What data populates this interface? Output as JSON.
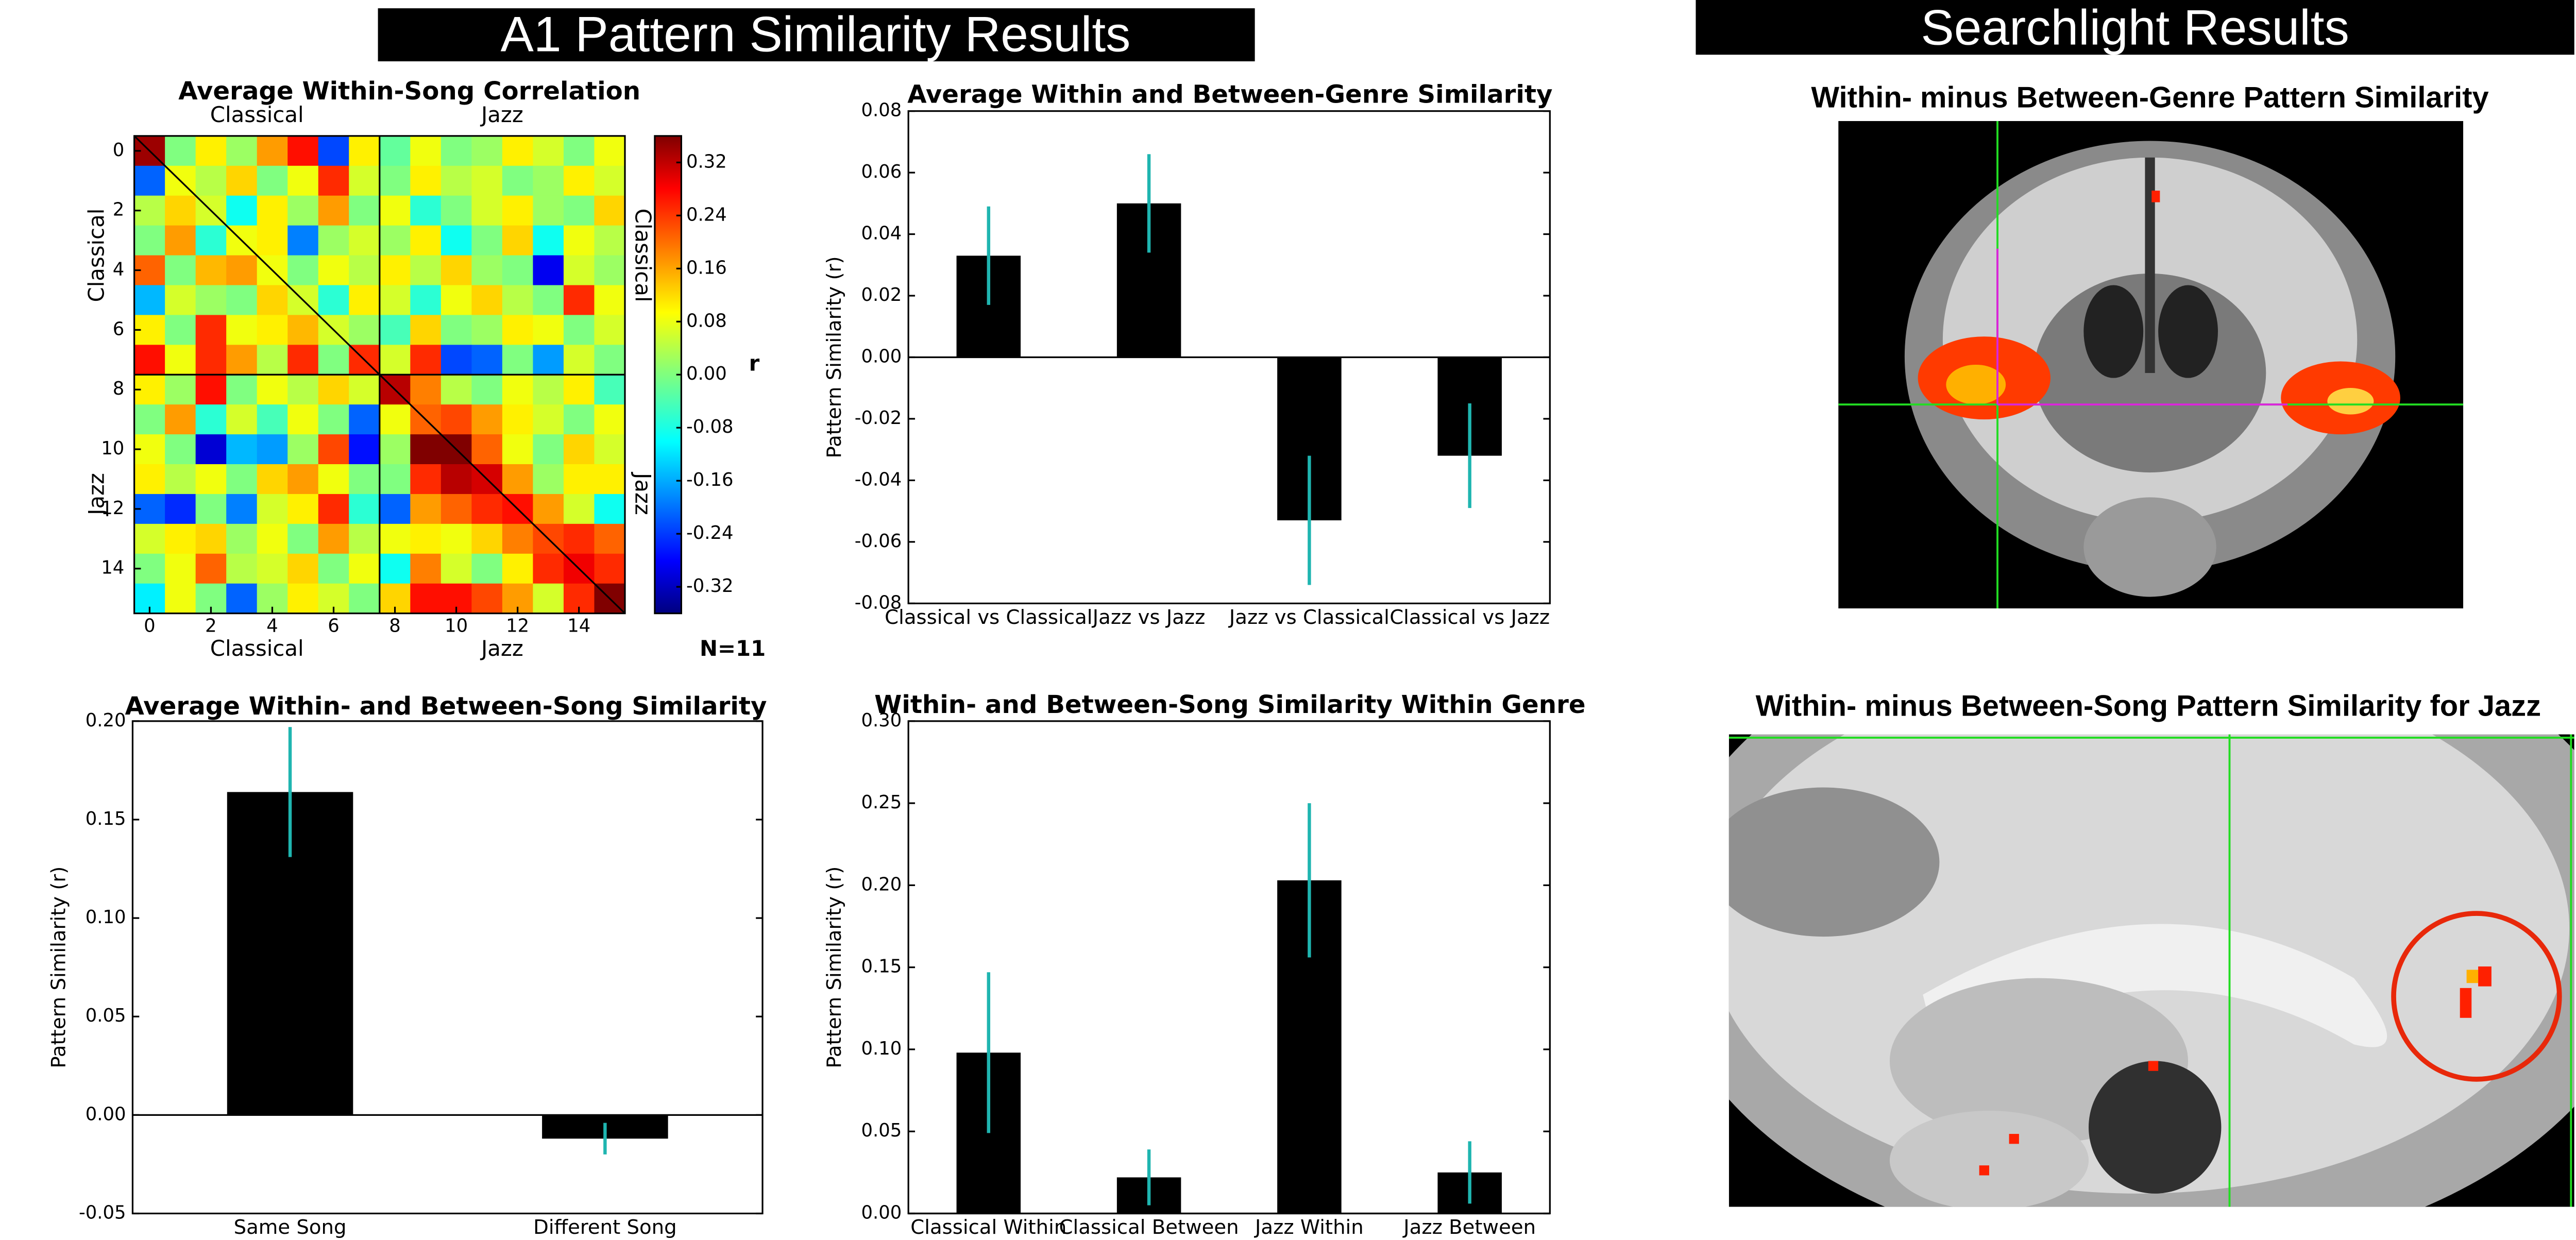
{
  "headers": [
    "A1 Pattern Similarity Results",
    "Searchlight Results"
  ],
  "image_titles": [
    "Within- minus Between-Genre Pattern Similarity",
    "Within- minus Between-Song Pattern Similarity for Jazz"
  ],
  "chart_data": [
    {
      "type": "heatmap",
      "title": "Average Within-Song Correlation",
      "group_labels": [
        "Classical",
        "Jazz"
      ],
      "matrix": [
        [
          0.34,
          0.0,
          0.1,
          0.02,
          0.16,
          0.26,
          -0.22,
          0.1,
          -0.02,
          0.08,
          0.0,
          0.02,
          0.1,
          0.06,
          0.0,
          0.08
        ],
        [
          -0.2,
          0.08,
          0.04,
          0.12,
          0.0,
          0.08,
          0.24,
          0.06,
          0.0,
          0.1,
          0.04,
          0.06,
          0.0,
          0.02,
          0.1,
          0.06
        ],
        [
          0.04,
          0.12,
          0.06,
          -0.08,
          0.1,
          0.02,
          0.16,
          0.0,
          0.08,
          -0.06,
          0.0,
          0.06,
          0.1,
          0.02,
          0.0,
          0.12
        ],
        [
          0.0,
          0.16,
          -0.06,
          0.08,
          0.1,
          -0.18,
          0.02,
          0.06,
          0.02,
          0.1,
          -0.08,
          0.0,
          0.12,
          -0.08,
          0.08,
          0.04
        ],
        [
          0.2,
          0.0,
          0.14,
          0.16,
          0.08,
          0.0,
          0.08,
          0.04,
          0.1,
          0.04,
          0.12,
          0.02,
          0.0,
          -0.28,
          0.06,
          0.02
        ],
        [
          -0.14,
          0.06,
          0.02,
          0.0,
          0.12,
          0.06,
          -0.06,
          0.1,
          0.06,
          -0.06,
          0.08,
          0.12,
          0.04,
          0.0,
          0.24,
          0.08
        ],
        [
          0.1,
          0.0,
          0.24,
          0.08,
          0.1,
          0.14,
          0.06,
          0.02,
          -0.04,
          0.12,
          0.0,
          0.02,
          0.1,
          0.08,
          0.0,
          0.06
        ],
        [
          0.26,
          0.08,
          0.24,
          0.16,
          0.04,
          0.24,
          0.0,
          0.24,
          0.06,
          0.24,
          -0.22,
          -0.2,
          0.0,
          -0.16,
          0.06,
          0.0
        ],
        [
          0.1,
          0.02,
          0.26,
          0.0,
          0.08,
          0.04,
          0.12,
          0.06,
          0.32,
          0.18,
          0.04,
          0.0,
          0.08,
          0.04,
          0.1,
          -0.04
        ],
        [
          0.0,
          0.16,
          -0.06,
          0.06,
          -0.04,
          0.08,
          0.0,
          -0.2,
          0.08,
          0.2,
          0.22,
          0.16,
          0.1,
          0.06,
          0.0,
          0.08
        ],
        [
          0.08,
          0.0,
          -0.3,
          -0.14,
          -0.16,
          0.02,
          0.22,
          -0.26,
          0.02,
          0.36,
          0.36,
          0.2,
          0.08,
          0.0,
          0.12,
          0.06
        ],
        [
          0.1,
          0.04,
          0.08,
          0.0,
          0.12,
          0.16,
          0.08,
          0.0,
          0.0,
          0.24,
          0.32,
          0.3,
          0.16,
          0.02,
          0.1,
          0.1
        ],
        [
          -0.2,
          -0.24,
          0.0,
          -0.18,
          0.06,
          0.1,
          0.24,
          -0.06,
          -0.2,
          0.16,
          0.2,
          0.24,
          0.26,
          0.16,
          0.06,
          -0.08
        ],
        [
          0.06,
          0.1,
          0.12,
          0.02,
          0.08,
          0.0,
          0.16,
          0.04,
          0.08,
          0.1,
          0.08,
          0.12,
          0.18,
          0.22,
          0.24,
          0.2
        ],
        [
          0.0,
          0.08,
          0.2,
          0.04,
          0.06,
          0.12,
          0.0,
          0.08,
          -0.08,
          0.18,
          0.06,
          0.0,
          0.1,
          0.24,
          0.28,
          0.24
        ],
        [
          -0.1,
          0.08,
          0.0,
          -0.2,
          0.02,
          0.1,
          0.06,
          0.0,
          0.12,
          0.26,
          0.26,
          0.22,
          0.16,
          0.06,
          0.24,
          0.36
        ]
      ],
      "xlim": [
        -0.5,
        15.5
      ],
      "ylim": [
        15.5,
        -0.5
      ],
      "xticks": [
        0,
        2,
        4,
        6,
        8,
        10,
        12,
        14
      ],
      "yticks": [
        0,
        2,
        4,
        6,
        8,
        10,
        12,
        14
      ],
      "clim": [
        -0.36,
        0.36
      ],
      "cticks": [
        -0.32,
        -0.24,
        -0.16,
        -0.08,
        {
          "value": 0,
          "label": "0.00"
        },
        0.08,
        0.16,
        0.24,
        0.32
      ],
      "colorbar_label": "r",
      "annotation": "N=11",
      "colormap": "jet"
    },
    {
      "type": "bar",
      "title": "Average Within and Between-Genre Similarity",
      "categories": [
        "Classical vs Classical",
        "Jazz vs Jazz",
        "Jazz vs Classical",
        "Classical vs Jazz"
      ],
      "values": [
        0.033,
        0.05,
        -0.053,
        -0.032
      ],
      "errors": [
        0.016,
        0.016,
        0.021,
        0.017
      ],
      "color": "#000000",
      "error_color": "#1fb5b0",
      "ylabel": "Pattern Similarity (r)",
      "ylim": [
        -0.08,
        0.08
      ],
      "yticks": [
        -0.08,
        -0.06,
        -0.04,
        -0.02,
        {
          "value": 0,
          "label": "0.00"
        },
        0.02,
        0.04,
        0.06,
        0.08
      ]
    },
    {
      "type": "bar",
      "title": "Average Within- and Between-Song Similarity",
      "categories": [
        "Same Song",
        "Different Song"
      ],
      "values": [
        0.164,
        -0.012
      ],
      "errors": [
        0.033,
        0.008
      ],
      "color": "#000000",
      "error_color": "#1fb5b0",
      "ylabel": "Pattern Similarity (r)",
      "ylim": [
        -0.05,
        0.2
      ],
      "yticks": [
        -0.05,
        {
          "value": 0,
          "label": "0.00"
        },
        0.05,
        {
          "value": 0.1,
          "label": "0.10"
        },
        0.15,
        {
          "value": 0.2,
          "label": "0.20"
        }
      ]
    },
    {
      "type": "bar",
      "title": "Within- and Between-Song Similarity Within Genre",
      "categories": [
        "Classical Within",
        "Classical Between",
        "Jazz Within",
        "Jazz Between"
      ],
      "values": [
        0.098,
        0.022,
        0.203,
        0.025
      ],
      "errors": [
        0.049,
        0.017,
        0.047,
        0.019
      ],
      "color": "#000000",
      "error_color": "#1fb5b0",
      "ylabel": "Pattern Similarity (r)",
      "ylim": [
        0,
        0.3
      ],
      "yticks": [
        {
          "value": 0,
          "label": "0.00"
        },
        0.05,
        {
          "value": 0.1,
          "label": "0.10"
        },
        0.15,
        {
          "value": 0.2,
          "label": "0.20"
        },
        0.25,
        {
          "value": 0.3,
          "label": "0.30"
        }
      ]
    }
  ]
}
